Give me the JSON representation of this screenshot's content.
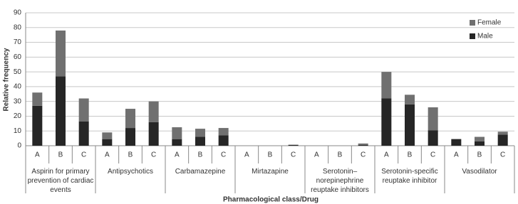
{
  "chart_data": {
    "type": "bar",
    "stacked": true,
    "x_label": "Pharmacological class/Drug",
    "y_label": "Relative frequency",
    "categories": [
      "A",
      "B",
      "C",
      "A",
      "B",
      "C",
      "A",
      "B",
      "C",
      "A",
      "B",
      "C",
      "A",
      "B",
      "C",
      "A",
      "B",
      "C",
      "A",
      "B",
      "C"
    ],
    "groups": [
      "Aspirin for primary prevention of cardiac events",
      "Antipsychotics",
      "Carbamazepine",
      "Mirtazapine",
      "Serotonin–norepinephrine reuptake inhibitors",
      "Serotonin-specific reuptake inhibitor",
      "Vasodilator"
    ],
    "series": [
      {
        "name": "Male",
        "color": "#262626",
        "values": [
          27,
          47,
          16.5,
          4.5,
          12,
          16,
          4.5,
          6,
          7,
          0,
          0,
          0.5,
          0,
          0,
          0.5,
          32,
          28,
          10.5,
          4.5,
          3,
          7.5
        ]
      },
      {
        "name": "Female",
        "color": "#707070",
        "values": [
          9,
          31,
          15.5,
          4.5,
          13,
          14,
          8,
          5.5,
          5,
          0,
          0,
          0.2,
          0,
          0,
          1,
          18,
          6.5,
          15.5,
          0,
          3,
          2
        ]
      }
    ],
    "ylim": [
      0,
      90
    ],
    "yticks": [
      0,
      10,
      20,
      30,
      40,
      50,
      60,
      70,
      80,
      90
    ],
    "grid": true,
    "legend": "top-right"
  }
}
